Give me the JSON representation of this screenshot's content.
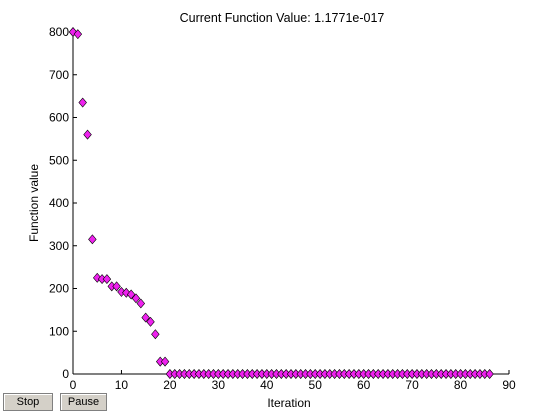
{
  "chart_data": {
    "type": "scatter",
    "title": "Current Function Value: 1.1771e-017",
    "xlabel": "Iteration",
    "ylabel": "Function value",
    "xlim": [
      0,
      90
    ],
    "ylim": [
      0,
      800
    ],
    "xticks": [
      0,
      10,
      20,
      30,
      40,
      50,
      60,
      70,
      80,
      90
    ],
    "yticks": [
      0,
      100,
      200,
      300,
      400,
      500,
      600,
      700,
      800
    ],
    "marker": "diamond",
    "marker_color": "#ee22ee",
    "grid": false,
    "box": false,
    "x": [
      0,
      1,
      2,
      3,
      4,
      5,
      6,
      7,
      8,
      9,
      10,
      11,
      12,
      13,
      14,
      15,
      16,
      17,
      18,
      19,
      20,
      21,
      22,
      23,
      24,
      25,
      26,
      27,
      28,
      29,
      30,
      31,
      32,
      33,
      34,
      35,
      36,
      37,
      38,
      39,
      40,
      41,
      42,
      43,
      44,
      45,
      46,
      47,
      48,
      49,
      50,
      51,
      52,
      53,
      54,
      55,
      56,
      57,
      58,
      59,
      60,
      61,
      62,
      63,
      64,
      65,
      66,
      67,
      68,
      69,
      70,
      71,
      72,
      73,
      74,
      75,
      76,
      77,
      78,
      79,
      80,
      81,
      82,
      83,
      84,
      85,
      86
    ],
    "y": [
      800,
      795,
      635,
      560,
      315,
      225,
      222,
      222,
      205,
      205,
      192,
      190,
      186,
      177,
      165,
      132,
      122,
      93,
      29,
      29,
      0,
      0,
      0,
      0,
      0,
      0,
      0,
      0,
      0,
      0,
      0,
      0,
      0,
      0,
      0,
      0,
      0,
      0,
      0,
      0,
      0,
      0,
      0,
      0,
      0,
      0,
      0,
      0,
      0,
      0,
      0,
      0,
      0,
      0,
      0,
      0,
      0,
      0,
      0,
      0,
      0,
      0,
      0,
      0,
      0,
      0,
      0,
      0,
      0,
      0,
      0,
      0,
      0,
      0,
      0,
      0,
      0,
      0,
      0,
      0,
      0,
      0,
      0,
      0,
      0,
      0,
      0
    ]
  },
  "controls": {
    "stop_label": "Stop",
    "pause_label": "Pause"
  }
}
